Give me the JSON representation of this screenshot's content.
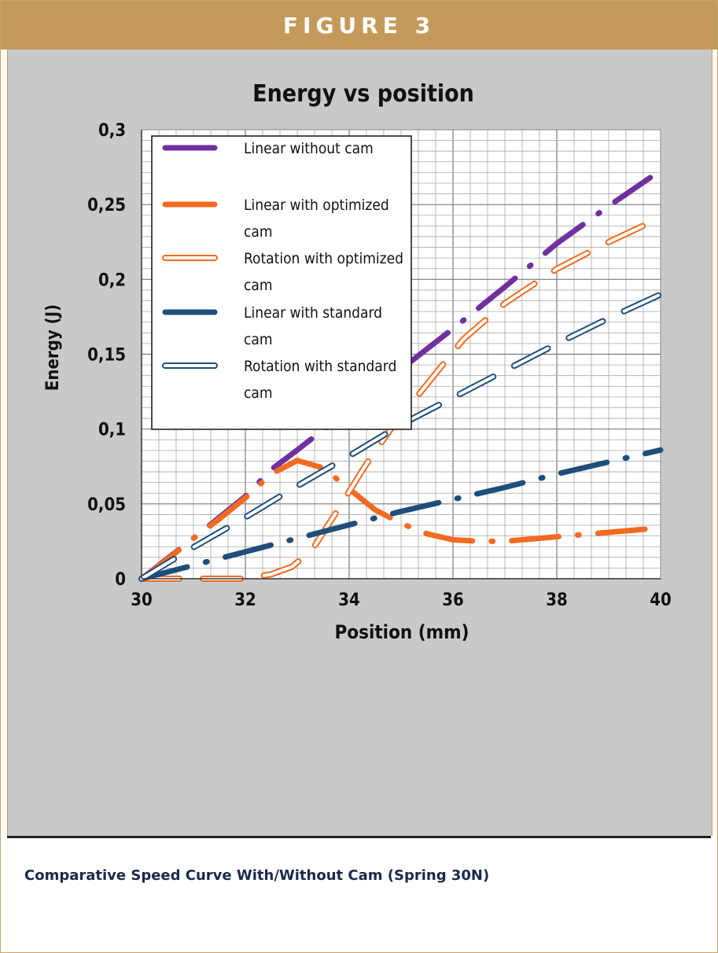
{
  "figure": {
    "banner": "FIGURE 3",
    "caption": "Comparative Speed Curve With/Without Cam (Spring 30N)"
  },
  "chart_data": {
    "type": "line",
    "title": "Energy vs position",
    "xlabel": "Position (mm)",
    "ylabel": "Energy (J)",
    "xlim": [
      30,
      40
    ],
    "ylim": [
      0,
      0.3
    ],
    "x_ticks": [
      "30",
      "32",
      "34",
      "36",
      "38",
      "40"
    ],
    "y_ticks": [
      "0",
      "0,05",
      "0,1",
      "0,15",
      "0,2",
      "0,25",
      "0,3"
    ],
    "grid": true,
    "legend_position": "top-left",
    "series": [
      {
        "name": "Linear without cam",
        "color": "#7030a0",
        "style": "solid-dashed",
        "x": [
          30,
          31,
          32,
          32.5,
          33,
          34,
          35,
          36,
          37,
          38,
          39,
          39.8
        ],
        "y": [
          0,
          0.027,
          0.055,
          0.073,
          0.086,
          0.113,
          0.14,
          0.167,
          0.195,
          0.224,
          0.249,
          0.268
        ]
      },
      {
        "name": "Linear  with optimized cam",
        "color": "#f26b21",
        "style": "solid-dashed",
        "x": [
          30,
          30.5,
          31,
          31.5,
          32,
          32.5,
          33,
          33.5,
          34,
          34.5,
          35,
          35.5,
          36,
          36.5,
          37,
          38,
          39,
          40
        ],
        "y": [
          0,
          0.013,
          0.027,
          0.04,
          0.054,
          0.07,
          0.079,
          0.074,
          0.06,
          0.046,
          0.037,
          0.03,
          0.026,
          0.025,
          0.025,
          0.028,
          0.031,
          0.034
        ]
      },
      {
        "name": "Rotation with optimized cam",
        "color": "#f26b21",
        "style": "hollow-dashed",
        "x": [
          30,
          31,
          31.5,
          32,
          32.5,
          32.9,
          33.3,
          33.8,
          34.3,
          34.8,
          35.5,
          36.2,
          37,
          38,
          39,
          39.8
        ],
        "y": [
          0,
          0,
          0,
          0,
          0.003,
          0.008,
          0.02,
          0.047,
          0.075,
          0.1,
          0.13,
          0.16,
          0.184,
          0.207,
          0.225,
          0.238
        ]
      },
      {
        "name": "Linear with standard cam",
        "color": "#1f4e79",
        "style": "solid-dashed",
        "x": [
          30,
          31,
          32,
          33,
          34,
          35,
          36,
          37,
          38,
          39,
          40
        ],
        "y": [
          0,
          0.009,
          0.018,
          0.027,
          0.036,
          0.045,
          0.053,
          0.061,
          0.07,
          0.078,
          0.086
        ]
      },
      {
        "name": "Rotation with standard cam",
        "color": "#1f4e79",
        "style": "hollow-dashed",
        "x": [
          30,
          31,
          32,
          33,
          34,
          35,
          36,
          37,
          38,
          39,
          40
        ],
        "y": [
          0,
          0.021,
          0.041,
          0.062,
          0.082,
          0.103,
          0.121,
          0.139,
          0.157,
          0.174,
          0.19
        ]
      }
    ],
    "legend": [
      {
        "line1": "Linear without cam",
        "line2": ""
      },
      {
        "line1": "Linear  with optimized",
        "line2": "cam"
      },
      {
        "line1": "Rotation with optimized",
        "line2": "cam"
      },
      {
        "line1": "Linear with standard",
        "line2": "cam"
      },
      {
        "line1": "Rotation with standard",
        "line2": "cam"
      }
    ]
  }
}
